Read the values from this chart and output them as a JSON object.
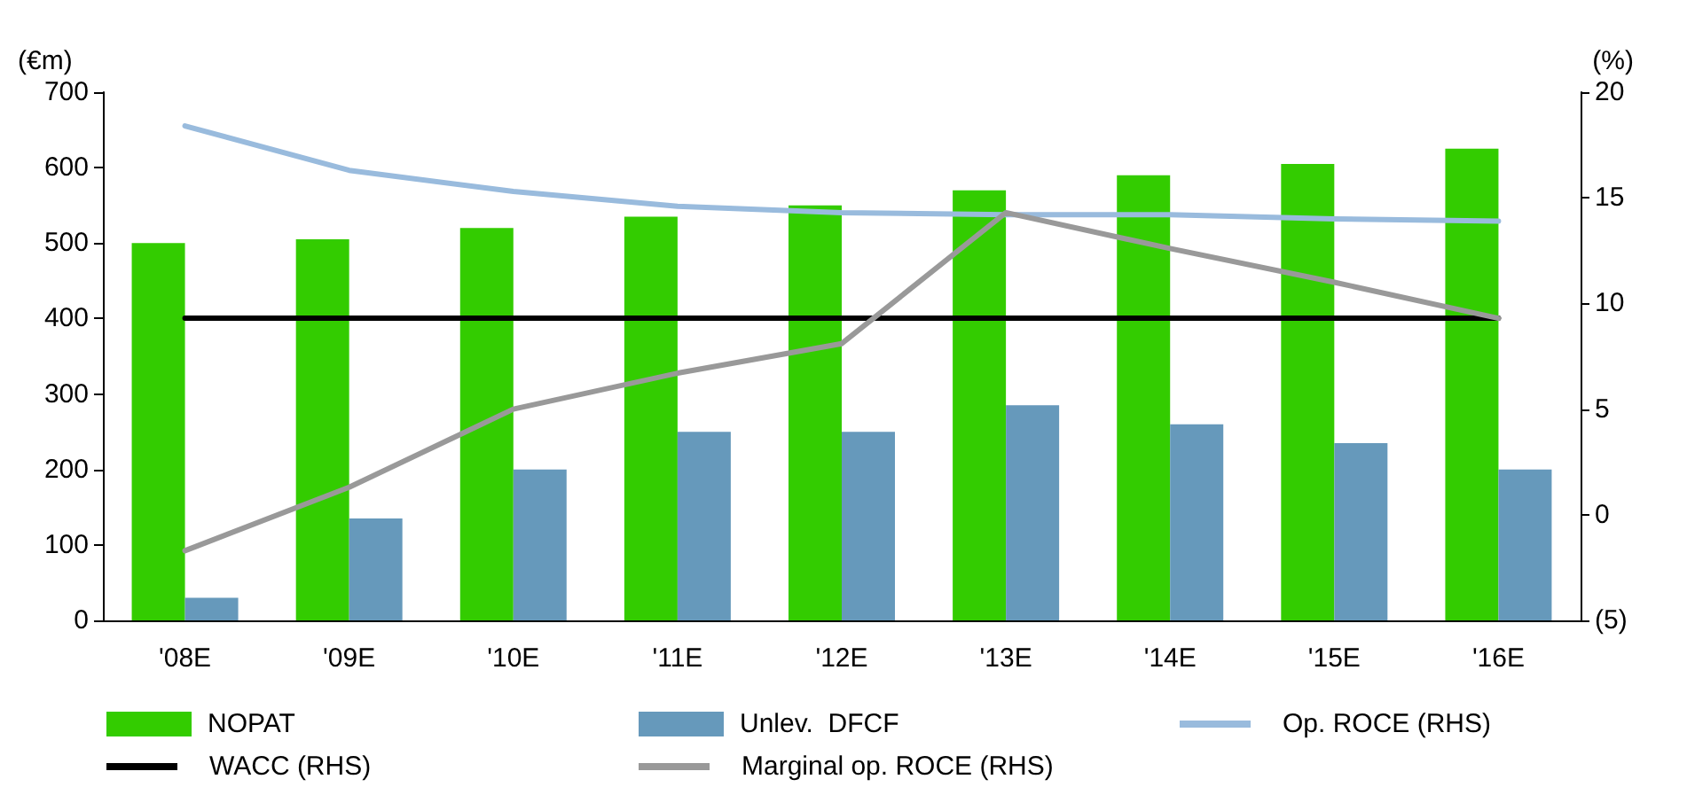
{
  "chart_data": {
    "type": "bar",
    "ylabel": "(€m)",
    "y2label": "(%)",
    "categories": [
      "'08E",
      "'09E",
      "'10E",
      "'11E",
      "'12E",
      "'13E",
      "'14E",
      "'15E",
      "'16E"
    ],
    "series": [
      {
        "name": "NOPAT",
        "color": "#33cc00",
        "values": [
          500,
          505,
          520,
          535,
          550,
          570,
          590,
          605,
          625
        ]
      },
      {
        "name": "Unlev.  DFCF",
        "color": "#6699bb",
        "values": [
          30,
          135,
          200,
          250,
          250,
          285,
          260,
          235,
          200
        ]
      },
      {
        "name": "Op. ROCE (RHS)",
        "type": "line",
        "axis": "y2",
        "color": "#99bbdd",
        "values": [
          18.4,
          16.3,
          15.3,
          14.6,
          14.3,
          14.2,
          14.2,
          14.0,
          13.9
        ]
      },
      {
        "name": "WACC (RHS)",
        "type": "line",
        "axis": "y2",
        "color": "#000000",
        "values": [
          9.3,
          9.3,
          9.3,
          9.3,
          9.3,
          9.3,
          9.3,
          9.3,
          9.3
        ]
      },
      {
        "name": "Marginal op. ROCE (RHS)",
        "type": "line",
        "axis": "y2",
        "color": "#999999",
        "values": [
          -1.7,
          1.3,
          5.0,
          6.7,
          8.1,
          14.3,
          12.6,
          11.0,
          9.3
        ]
      }
    ],
    "ylim": [
      0,
      700
    ],
    "yticks": [
      0,
      100,
      200,
      300,
      400,
      500,
      600,
      700
    ],
    "y2lim": [
      -5,
      20
    ],
    "y2ticks": [
      {
        "value": -5,
        "label": "(5)"
      },
      0,
      5,
      10,
      15,
      20
    ],
    "grid": false,
    "legend": "bottom",
    "marker": "none",
    "line_style": "solid"
  }
}
